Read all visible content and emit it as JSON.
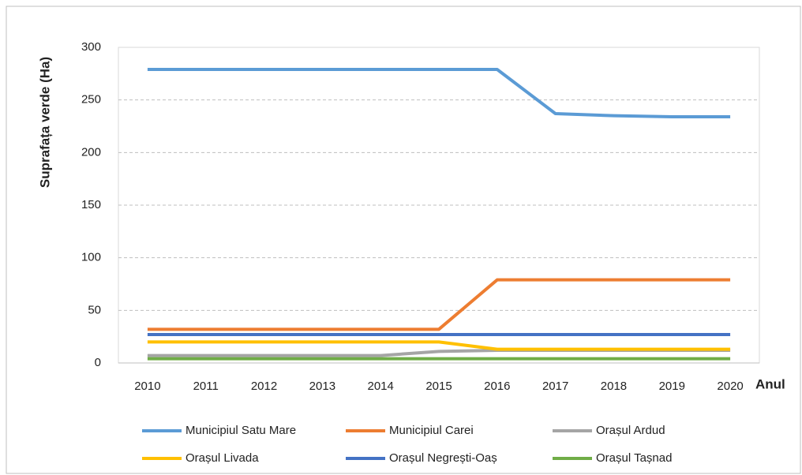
{
  "chart_data": {
    "type": "line",
    "y_label": "Suprafața verde (Ha)",
    "x_label": "Anul",
    "categories": [
      "2010",
      "2011",
      "2012",
      "2013",
      "2014",
      "2015",
      "2016",
      "2017",
      "2018",
      "2019",
      "2020"
    ],
    "series": [
      {
        "name": "Municipiul Satu Mare",
        "color": "#5b9bd5",
        "values": [
          279,
          279,
          279,
          279,
          279,
          279,
          279,
          237,
          235,
          234,
          234
        ]
      },
      {
        "name": "Municipiul Carei",
        "color": "#ed7d31",
        "values": [
          32,
          32,
          32,
          32,
          32,
          32,
          79,
          79,
          79,
          79,
          79
        ]
      },
      {
        "name": "Orașul Ardud",
        "color": "#a5a5a5",
        "values": [
          7,
          7,
          7,
          7,
          7,
          11,
          12,
          12,
          12,
          12,
          12
        ]
      },
      {
        "name": "Orașul Livada",
        "color": "#ffc000",
        "values": [
          20,
          20,
          20,
          20,
          20,
          20,
          13,
          13,
          13,
          13,
          13
        ]
      },
      {
        "name": "Orașul Negrești-Oaș",
        "color": "#4472c4",
        "values": [
          27,
          27,
          27,
          27,
          27,
          27,
          27,
          27,
          27,
          27,
          27
        ]
      },
      {
        "name": "Orașul Tașnad",
        "color": "#70ad47",
        "values": [
          4,
          4,
          4,
          4,
          4,
          4,
          4,
          4,
          4,
          4,
          4
        ]
      }
    ],
    "ylim": [
      0,
      300
    ],
    "yticks": [
      0,
      50,
      100,
      150,
      200,
      250,
      300
    ],
    "grid": true
  }
}
